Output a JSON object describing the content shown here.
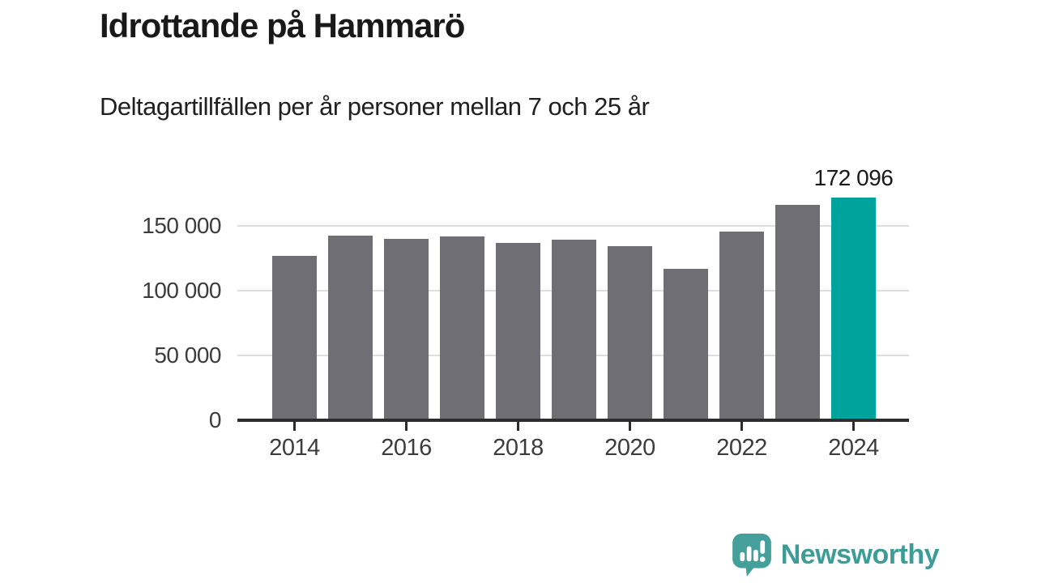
{
  "title": "Idrottande på Hammarö",
  "subtitle": "Deltagartillfällen per år personer mellan 7 och 25 år",
  "chart_data": {
    "type": "bar",
    "title": "Idrottande på Hammarö",
    "subtitle": "Deltagartillfällen per år personer mellan 7 och 25 år",
    "categories": [
      2014,
      2015,
      2016,
      2017,
      2018,
      2019,
      2020,
      2021,
      2022,
      2023,
      2024
    ],
    "values": [
      127000,
      142500,
      140000,
      142000,
      137000,
      139500,
      134500,
      117000,
      145500,
      166500,
      172096
    ],
    "highlight_index": 10,
    "data_label": "172 096",
    "xlabel": "",
    "ylabel": "",
    "ylim": [
      0,
      181250
    ],
    "ytick_values": [
      0,
      50000,
      100000,
      150000
    ],
    "ytick_labels": [
      "0",
      "50 000",
      "100 000",
      "150 000"
    ],
    "xtick_labels": [
      "2014",
      "2016",
      "2018",
      "2020",
      "2022",
      "2024"
    ],
    "grid": true,
    "legend_position": "none",
    "bar_color": "#6E6E74",
    "highlight_color": "#00A39B",
    "gridline_color": "#dedede",
    "axis_color": "#2d2d2d"
  },
  "branding": {
    "logo_text": "Newsworthy",
    "logo_text_color": "#3D9C96",
    "logo_icon_color": "#45A09B",
    "logo_icon": "newsworthy-bar-chart-bubble-icon"
  }
}
